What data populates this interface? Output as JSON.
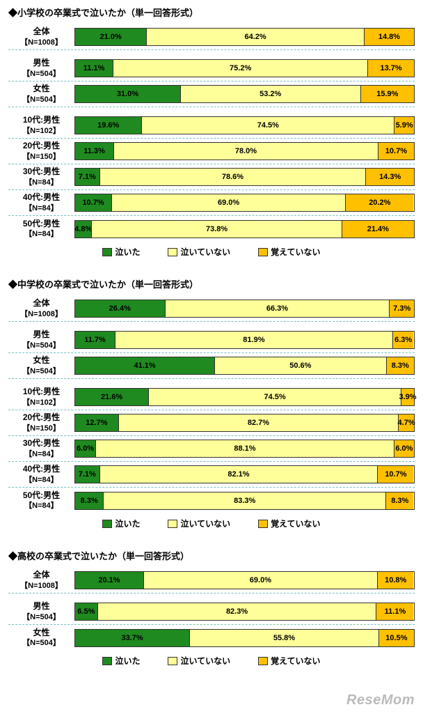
{
  "colors": {
    "cried": "#1f8a1f",
    "not_cried": "#ffff99",
    "dont_remember": "#ffc000",
    "text": "#222222",
    "divider": "#78c0be",
    "bg": "#ffffff"
  },
  "legend": {
    "cried": "泣いた",
    "not_cried": "泣いていない",
    "dont_remember": "覚えていない"
  },
  "watermark": "ReseMom",
  "charts": [
    {
      "title": "◆小学校の卒業式で泣いたか（単一回答形式）",
      "groups": [
        [
          {
            "label_line1": "全体",
            "n": "【N=1008】",
            "v": [
              21.0,
              64.2,
              14.8
            ]
          }
        ],
        [
          {
            "label_line1": "男性",
            "n": "【N=504】",
            "v": [
              11.1,
              75.2,
              13.7
            ]
          },
          {
            "label_line1": "女性",
            "n": "【N=504】",
            "v": [
              31.0,
              53.2,
              15.9
            ]
          }
        ],
        [
          {
            "label_line1": "10代:男性",
            "n": "【N=102】",
            "v": [
              19.6,
              74.5,
              5.9
            ]
          },
          {
            "label_line1": "20代:男性",
            "n": "【N=150】",
            "v": [
              11.3,
              78.0,
              10.7
            ]
          },
          {
            "label_line1": "30代:男性",
            "n": "【N=84】",
            "v": [
              7.1,
              78.6,
              14.3
            ]
          },
          {
            "label_line1": "40代:男性",
            "n": "【N=84】",
            "v": [
              10.7,
              69.0,
              20.2
            ]
          },
          {
            "label_line1": "50代:男性",
            "n": "【N=84】",
            "v": [
              4.8,
              73.8,
              21.4
            ]
          }
        ]
      ]
    },
    {
      "title": "◆中学校の卒業式で泣いたか（単一回答形式）",
      "groups": [
        [
          {
            "label_line1": "全体",
            "n": "【N=1008】",
            "v": [
              26.4,
              66.3,
              7.3
            ]
          }
        ],
        [
          {
            "label_line1": "男性",
            "n": "【N=504】",
            "v": [
              11.7,
              81.9,
              6.3
            ]
          },
          {
            "label_line1": "女性",
            "n": "【N=504】",
            "v": [
              41.1,
              50.6,
              8.3
            ]
          }
        ],
        [
          {
            "label_line1": "10代:男性",
            "n": "【N=102】",
            "v": [
              21.6,
              74.5,
              3.9
            ]
          },
          {
            "label_line1": "20代:男性",
            "n": "【N=150】",
            "v": [
              12.7,
              82.7,
              4.7
            ]
          },
          {
            "label_line1": "30代:男性",
            "n": "【N=84】",
            "v": [
              6.0,
              88.1,
              6.0
            ]
          },
          {
            "label_line1": "40代:男性",
            "n": "【N=84】",
            "v": [
              7.1,
              82.1,
              10.7
            ]
          },
          {
            "label_line1": "50代:男性",
            "n": "【N=84】",
            "v": [
              8.3,
              83.3,
              8.3
            ]
          }
        ]
      ]
    },
    {
      "title": "◆高校の卒業式で泣いたか（単一回答形式）",
      "groups": [
        [
          {
            "label_line1": "全体",
            "n": "【N=1008】",
            "v": [
              20.1,
              69.0,
              10.8
            ]
          }
        ],
        [
          {
            "label_line1": "男性",
            "n": "【N=504】",
            "v": [
              6.5,
              82.3,
              11.1
            ]
          },
          {
            "label_line1": "女性",
            "n": "【N=504】",
            "v": [
              33.7,
              55.8,
              10.5
            ]
          }
        ]
      ]
    }
  ]
}
